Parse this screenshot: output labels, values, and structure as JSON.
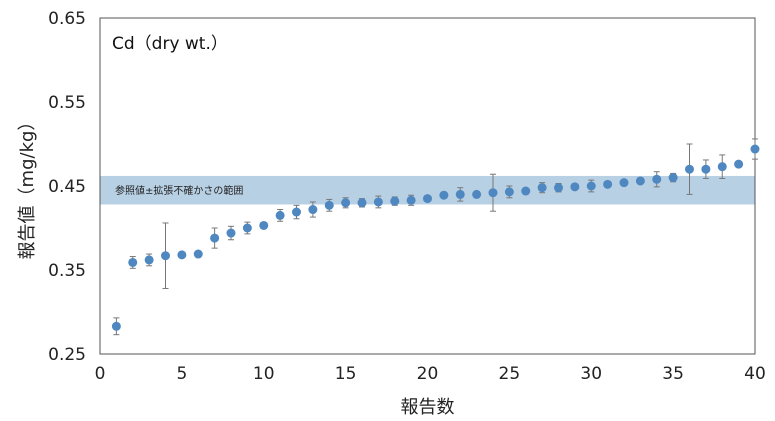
{
  "chart_data": {
    "type": "scatter",
    "title": "Cd（dry wt.）",
    "xlabel": "報告数",
    "ylabel": "報告値（mg/kg）",
    "xlim": [
      0,
      40
    ],
    "ylim": [
      0.25,
      0.65
    ],
    "xticks": [
      "0",
      "5",
      "10",
      "15",
      "20",
      "25",
      "30",
      "35",
      "40"
    ],
    "yticks": [
      "0.25",
      "0.35",
      "0.45",
      "0.55",
      "0.65"
    ],
    "grid": false,
    "reference_band": {
      "label": "参照値±拡張不確かさの範囲",
      "low": 0.428,
      "high": 0.462,
      "color": "#b7d0e4"
    },
    "marker_color": "#4f87c0",
    "errorbar_color": "#777777",
    "points": [
      {
        "x": 1,
        "y": 0.283,
        "err": 0.01
      },
      {
        "x": 2,
        "y": 0.359,
        "err": 0.007
      },
      {
        "x": 3,
        "y": 0.362,
        "err": 0.007
      },
      {
        "x": 4,
        "y": 0.367,
        "err": 0.039
      },
      {
        "x": 5,
        "y": 0.368,
        "err": 0.003
      },
      {
        "x": 6,
        "y": 0.369,
        "err": 0.002
      },
      {
        "x": 7,
        "y": 0.388,
        "err": 0.012
      },
      {
        "x": 8,
        "y": 0.394,
        "err": 0.008
      },
      {
        "x": 9,
        "y": 0.4,
        "err": 0.007
      },
      {
        "x": 10,
        "y": 0.403,
        "err": 0.003
      },
      {
        "x": 11,
        "y": 0.415,
        "err": 0.007
      },
      {
        "x": 12,
        "y": 0.419,
        "err": 0.008
      },
      {
        "x": 13,
        "y": 0.422,
        "err": 0.009
      },
      {
        "x": 14,
        "y": 0.427,
        "err": 0.007
      },
      {
        "x": 15,
        "y": 0.43,
        "err": 0.006
      },
      {
        "x": 16,
        "y": 0.43,
        "err": 0.005
      },
      {
        "x": 17,
        "y": 0.431,
        "err": 0.007
      },
      {
        "x": 18,
        "y": 0.432,
        "err": 0.005
      },
      {
        "x": 19,
        "y": 0.433,
        "err": 0.006
      },
      {
        "x": 20,
        "y": 0.435,
        "err": 0.003
      },
      {
        "x": 21,
        "y": 0.439,
        "err": 0.002
      },
      {
        "x": 22,
        "y": 0.44,
        "err": 0.008
      },
      {
        "x": 23,
        "y": 0.44,
        "err": 0.003
      },
      {
        "x": 24,
        "y": 0.442,
        "err": 0.022
      },
      {
        "x": 25,
        "y": 0.443,
        "err": 0.007
      },
      {
        "x": 26,
        "y": 0.444,
        "err": 0.003
      },
      {
        "x": 27,
        "y": 0.448,
        "err": 0.006
      },
      {
        "x": 28,
        "y": 0.448,
        "err": 0.005
      },
      {
        "x": 29,
        "y": 0.449,
        "err": 0.003
      },
      {
        "x": 30,
        "y": 0.45,
        "err": 0.007
      },
      {
        "x": 31,
        "y": 0.452,
        "err": 0.002
      },
      {
        "x": 32,
        "y": 0.454,
        "err": 0.002
      },
      {
        "x": 33,
        "y": 0.456,
        "err": 0.002
      },
      {
        "x": 34,
        "y": 0.458,
        "err": 0.009
      },
      {
        "x": 35,
        "y": 0.46,
        "err": 0.005
      },
      {
        "x": 36,
        "y": 0.47,
        "err": 0.03
      },
      {
        "x": 37,
        "y": 0.47,
        "err": 0.011
      },
      {
        "x": 38,
        "y": 0.473,
        "err": 0.014
      },
      {
        "x": 39,
        "y": 0.476,
        "err": 0.002
      },
      {
        "x": 40,
        "y": 0.494,
        "err": 0.012
      }
    ]
  }
}
